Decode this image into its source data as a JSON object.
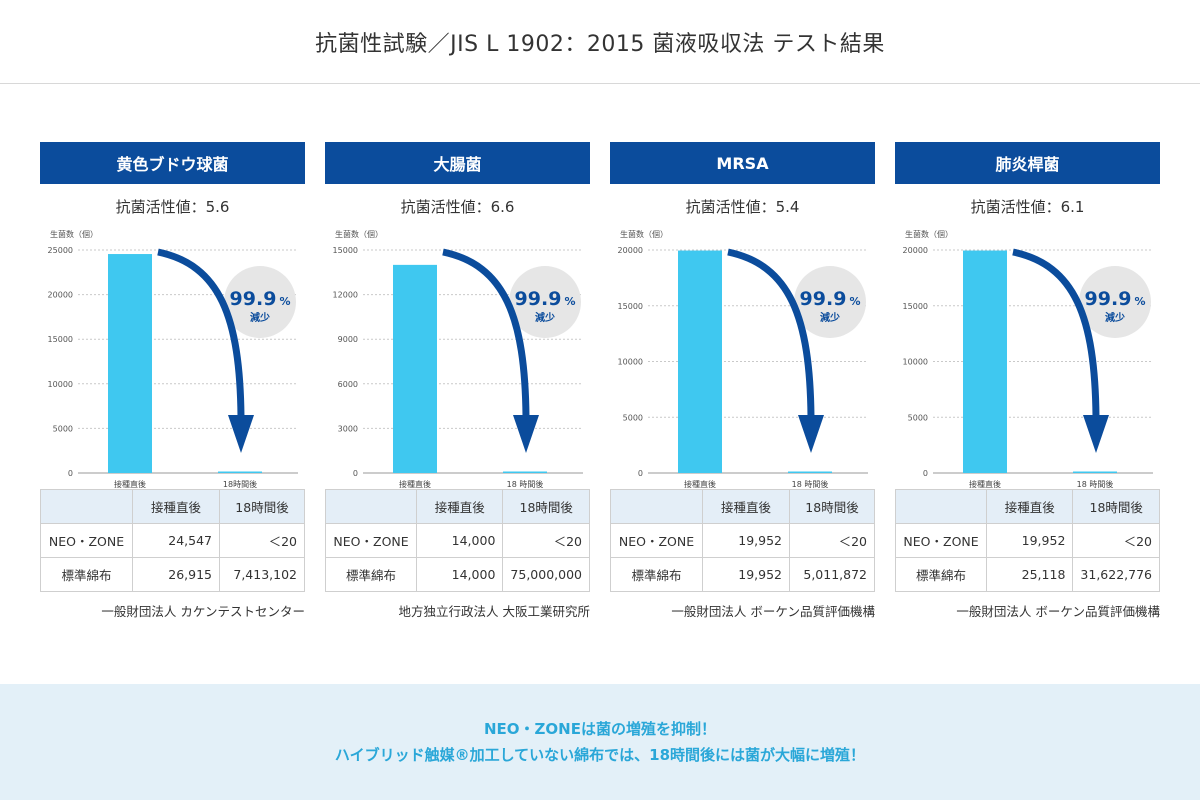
{
  "page_title": "抗菌性試験／JIS L 1902：2015 菌液吸収法 テスト結果",
  "colors": {
    "header_bg": "#0b4c9c",
    "bar": "#3fc8f0",
    "arrow": "#0b4c9c",
    "badge_bg": "#e6e6e6",
    "footer_text": "#2aa7d8"
  },
  "chart_data": [
    {
      "type": "bar",
      "title": "黄色ブドウ球菌",
      "subtitle": "抗菌活性値：5.6",
      "ylabel": "生菌数（個）",
      "categories": [
        "接種直後",
        "18時間後"
      ],
      "values": [
        24547,
        20
      ],
      "ylim": [
        0,
        25000
      ],
      "yticks": [
        0,
        5000,
        10000,
        15000,
        20000,
        25000
      ],
      "annotation": {
        "value": "99.9",
        "unit": "%",
        "label": "減少"
      },
      "grid": true
    },
    {
      "type": "bar",
      "title": "大腸菌",
      "subtitle": "抗菌活性値：6.6",
      "ylabel": "生菌数（個）",
      "categories": [
        "接種直後",
        "18 時間後"
      ],
      "values": [
        14000,
        20
      ],
      "ylim": [
        0,
        15000
      ],
      "yticks": [
        0,
        3000,
        6000,
        9000,
        12000,
        15000
      ],
      "annotation": {
        "value": "99.9",
        "unit": "%",
        "label": "減少"
      },
      "grid": true
    },
    {
      "type": "bar",
      "title": "MRSA",
      "subtitle": "抗菌活性値：5.4",
      "ylabel": "生菌数（個）",
      "categories": [
        "接種直後",
        "18 時間後"
      ],
      "values": [
        19952,
        20
      ],
      "ylim": [
        0,
        20000
      ],
      "yticks": [
        0,
        5000,
        10000,
        15000,
        20000
      ],
      "annotation": {
        "value": "99.9",
        "unit": "%",
        "label": "減少"
      },
      "grid": true
    },
    {
      "type": "bar",
      "title": "肺炎桿菌",
      "subtitle": "抗菌活性値：6.1",
      "ylabel": "生菌数（個）",
      "categories": [
        "接種直後",
        "18 時間後"
      ],
      "values": [
        19952,
        20
      ],
      "ylim": [
        0,
        20000
      ],
      "yticks": [
        0,
        5000,
        10000,
        15000,
        20000
      ],
      "annotation": {
        "value": "99.9",
        "unit": "%",
        "label": "減少"
      },
      "grid": true
    }
  ],
  "tables": [
    {
      "headers": [
        "",
        "接種直後",
        "18時間後"
      ],
      "rows": [
        [
          "NEO・ZONE",
          "24,547",
          "＜20"
        ],
        [
          "標準綿布",
          "26,915",
          "7,413,102"
        ]
      ],
      "org": "一般財団法人 カケンテストセンター"
    },
    {
      "headers": [
        "",
        "接種直後",
        "18時間後"
      ],
      "rows": [
        [
          "NEO・ZONE",
          "14,000",
          "＜20"
        ],
        [
          "標準綿布",
          "14,000",
          "75,000,000"
        ]
      ],
      "org": "地方独立行政法人 大阪工業研究所"
    },
    {
      "headers": [
        "",
        "接種直後",
        "18時間後"
      ],
      "rows": [
        [
          "NEO・ZONE",
          "19,952",
          "＜20"
        ],
        [
          "標準綿布",
          "19,952",
          "5,011,872"
        ]
      ],
      "org": "一般財団法人 ボーケン品質評価機構"
    },
    {
      "headers": [
        "",
        "接種直後",
        "18時間後"
      ],
      "rows": [
        [
          "NEO・ZONE",
          "19,952",
          "＜20"
        ],
        [
          "標準綿布",
          "25,118",
          "31,622,776"
        ]
      ],
      "org": "一般財団法人 ボーケン品質評価機構"
    }
  ],
  "footer": {
    "line1": "NEO・ZONEは菌の増殖を抑制！",
    "line2": "ハイブリッド触媒®加工していない綿布では、18時間後には菌が大幅に増殖！"
  }
}
